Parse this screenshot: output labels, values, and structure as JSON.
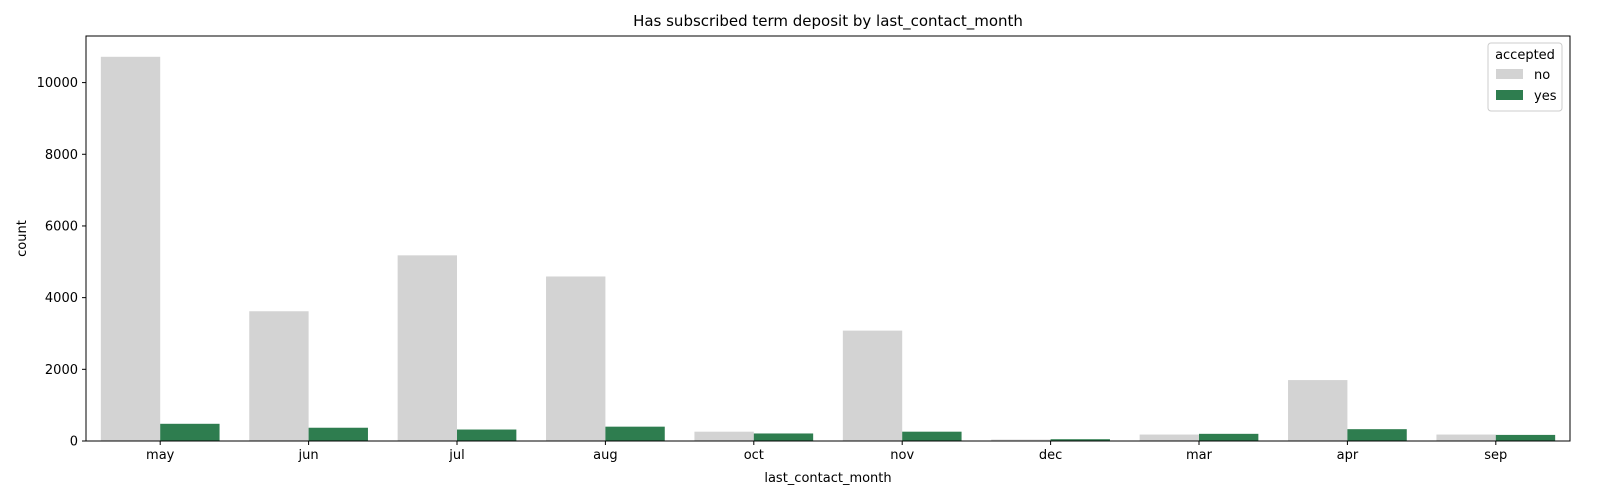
{
  "chart_data": {
    "type": "bar",
    "title": "Has subscribed term deposit by last_contact_month",
    "xlabel": "last_contact_month",
    "ylabel": "count",
    "categories": [
      "may",
      "jun",
      "jul",
      "aug",
      "oct",
      "nov",
      "dec",
      "mar",
      "apr",
      "sep"
    ],
    "series": [
      {
        "name": "no",
        "color": "#d3d3d3",
        "values": [
          10720,
          3620,
          5180,
          4590,
          260,
          3080,
          40,
          180,
          1700,
          180
        ]
      },
      {
        "name": "yes",
        "color": "#2e7d4f",
        "values": [
          480,
          370,
          320,
          400,
          210,
          260,
          50,
          200,
          330,
          170
        ]
      }
    ],
    "ylim": [
      0,
      11300
    ],
    "yticks": [
      0,
      2000,
      4000,
      6000,
      8000,
      10000
    ],
    "legend": {
      "title": "accepted",
      "placement": "top-right"
    },
    "grid": false
  }
}
